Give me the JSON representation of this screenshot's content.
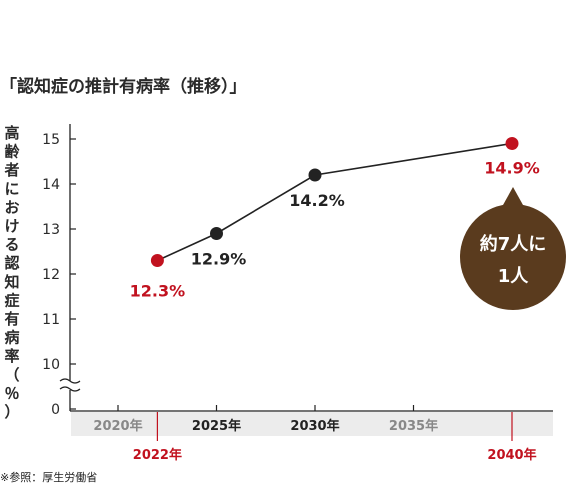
{
  "title": "「認知症の推計有病率（推移）」",
  "source_note": "※参照：厚生労働省",
  "callout": {
    "line1": "約7人に",
    "line2": "1人",
    "color": "#5a3b1e"
  },
  "colors": {
    "highlight": "#c1121f",
    "normal": "#222222",
    "faded": "#888888",
    "line": "#222222"
  },
  "chart_data": {
    "type": "line",
    "title": "「認知症の推計有病率（推移）」",
    "ylabel": "高齢者における認知症有病率（％）",
    "xlabel": "",
    "yticks": [
      "15",
      "14",
      "13",
      "12",
      "11",
      "10",
      "0"
    ],
    "y_axis_break": true,
    "ylim": [
      10,
      15.2
    ],
    "x_ticks": [
      {
        "year": 2020,
        "label": "2020年",
        "style": "faded"
      },
      {
        "year": 2022,
        "label": "2022年",
        "style": "highlight"
      },
      {
        "year": 2025,
        "label": "2025年",
        "style": "normal"
      },
      {
        "year": 2030,
        "label": "2030年",
        "style": "normal"
      },
      {
        "year": 2035,
        "label": "2035年",
        "style": "faded"
      },
      {
        "year": 2040,
        "label": "2040年",
        "style": "highlight"
      }
    ],
    "series": [
      {
        "points": [
          {
            "x": 2022,
            "y": 12.3,
            "label": "12.3%",
            "highlight": true
          },
          {
            "x": 2025,
            "y": 12.9,
            "label": "12.9%",
            "highlight": false
          },
          {
            "x": 2030,
            "y": 14.2,
            "label": "14.2%",
            "highlight": false
          },
          {
            "x": 2040,
            "y": 14.9,
            "label": "14.9%",
            "highlight": true
          }
        ]
      }
    ],
    "grid": false,
    "legend": "none"
  }
}
